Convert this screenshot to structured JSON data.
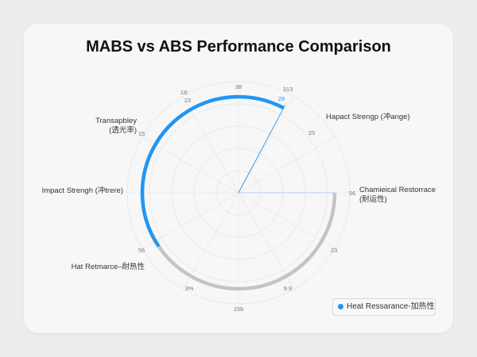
{
  "title": "MABS vs ABS Performance Comparison",
  "legend": {
    "label": "Heat Ressarance-加热性",
    "color": "#2196f3"
  },
  "chart_data": {
    "type": "radar",
    "title": "MABS vs ABS Performance Comparison",
    "axes": [
      {
        "name": "Transapbley\n(透光率)"
      },
      {
        "name": "Hapact Strengр (冲ange)"
      },
      {
        "name": "Chamieical Restorrace\n(耐运性)"
      },
      {
        "name": "Impact Strengh (冲trere)"
      },
      {
        "name": "Hat Retmarce–耐热性"
      }
    ],
    "ring_tick_labels": [
      "38",
      "313",
      "25",
      "56",
      "23",
      "9.9",
      "15b",
      "3%",
      "56",
      "15",
      "18:",
      "23"
    ],
    "highlight_label": "28",
    "series": [
      {
        "name": "Heat Ressarance-加热性",
        "color": "#2196f3",
        "arc_from_deg": 120,
        "arc_to_deg": 0
      },
      {
        "name": "",
        "color": "#c4c4c4",
        "arc_from_deg": 0,
        "arc_to_deg": -240
      }
    ],
    "pointer_angle_deg": 62,
    "grid": true,
    "legend_position": "bottom-right"
  }
}
